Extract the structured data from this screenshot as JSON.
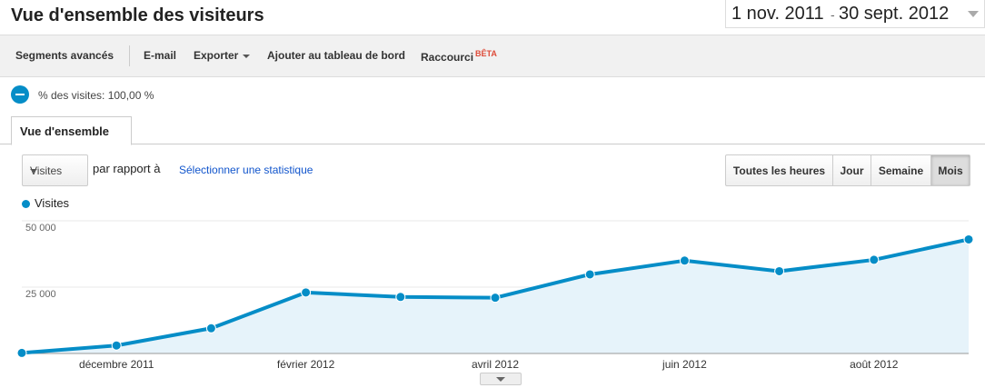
{
  "header": {
    "title": "Vue d'ensemble des visiteurs",
    "date_start": "1 nov. 2011",
    "date_sep": "-",
    "date_end": "30 sept. 2012"
  },
  "toolbar": {
    "segments_label": "Segments avancés",
    "email_label": "E-mail",
    "export_label": "Exporter",
    "dashboard_label": "Ajouter au tableau de bord",
    "shortcut_label": "Raccourci",
    "shortcut_badge": "BÊTA"
  },
  "segment": {
    "text": "% des visites: 100,00 %"
  },
  "tabs": [
    {
      "label": "Vue d'ensemble"
    }
  ],
  "controls": {
    "metric_select": "Visites",
    "compare_label": "par rapport à",
    "select_stat_link": "Sélectionner une statistique",
    "granularity": [
      {
        "label": "Toutes les heures"
      },
      {
        "label": "Jour"
      },
      {
        "label": "Semaine"
      },
      {
        "label": "Mois",
        "active": true
      }
    ]
  },
  "colors": {
    "series": "#058dc7",
    "fill": "#e6f3fa",
    "link": "#1155cc",
    "beta": "#dd4b39"
  },
  "chart_data": {
    "type": "area",
    "series": [
      {
        "name": "Visites",
        "values": [
          200,
          3000,
          9500,
          23000,
          21300,
          21000,
          29800,
          35000,
          31000,
          35300,
          43000
        ]
      }
    ],
    "x": [
      "2011-11",
      "2011-12",
      "2012-01",
      "2012-02",
      "2012-03",
      "2012-04",
      "2012-05",
      "2012-06",
      "2012-07",
      "2012-08",
      "2012-09"
    ],
    "x_tick_labels": [
      {
        "index": 1,
        "label": "décembre 2011"
      },
      {
        "index": 3,
        "label": "février 2012"
      },
      {
        "index": 5,
        "label": "avril 2012"
      },
      {
        "index": 7,
        "label": "juin 2012"
      },
      {
        "index": 9,
        "label": "août 2012"
      }
    ],
    "y_ticks": [
      {
        "value": 25000,
        "label": "25 000"
      },
      {
        "value": 50000,
        "label": "50 000"
      }
    ],
    "ylim": [
      0,
      50000
    ],
    "grid": true,
    "legend": "top-left"
  }
}
